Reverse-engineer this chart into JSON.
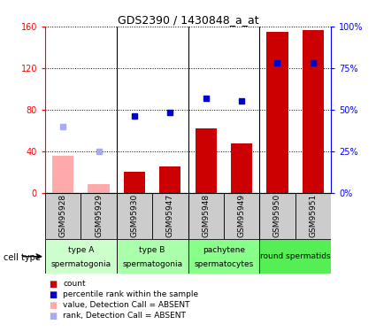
{
  "title": "GDS2390 / 1430848_a_at",
  "samples": [
    "GSM95928",
    "GSM95929",
    "GSM95930",
    "GSM95947",
    "GSM95948",
    "GSM95949",
    "GSM95950",
    "GSM95951"
  ],
  "count_values": [
    35,
    8,
    20,
    25,
    62,
    47,
    155,
    157
  ],
  "count_absent": [
    true,
    true,
    false,
    false,
    false,
    false,
    false,
    false
  ],
  "rank_values": [
    40,
    25,
    46,
    48,
    57,
    55,
    78,
    78
  ],
  "rank_absent": [
    true,
    true,
    false,
    false,
    false,
    false,
    false,
    false
  ],
  "ylim_left": [
    0,
    160
  ],
  "ylim_right": [
    0,
    100
  ],
  "yticks_left": [
    0,
    40,
    80,
    120,
    160
  ],
  "yticks_right": [
    0,
    25,
    50,
    75,
    100
  ],
  "ytick_labels_right": [
    "0%",
    "25%",
    "50%",
    "75%",
    "100%"
  ],
  "groups": [
    {
      "start": 0,
      "end": 1,
      "label1": "type A",
      "label2": "spermatogonia",
      "color": "#ccffcc"
    },
    {
      "start": 2,
      "end": 3,
      "label1": "type B",
      "label2": "spermatogonia",
      "color": "#aaffaa"
    },
    {
      "start": 4,
      "end": 5,
      "label1": "pachytene",
      "label2": "spermatocytes",
      "color": "#88ff88"
    },
    {
      "start": 6,
      "end": 7,
      "label1": "round spermatids",
      "label2": "",
      "color": "#55ee55"
    }
  ],
  "bar_color_present": "#cc0000",
  "bar_color_absent": "#ffaaaa",
  "dot_color_present": "#0000cc",
  "dot_color_absent": "#aaaaee",
  "bar_width": 0.6,
  "rank_scale": 1.6,
  "legend_items": [
    {
      "color": "#cc0000",
      "label": "count"
    },
    {
      "color": "#0000cc",
      "label": "percentile rank within the sample"
    },
    {
      "color": "#ffaaaa",
      "label": "value, Detection Call = ABSENT"
    },
    {
      "color": "#aaaaee",
      "label": "rank, Detection Call = ABSENT"
    }
  ]
}
